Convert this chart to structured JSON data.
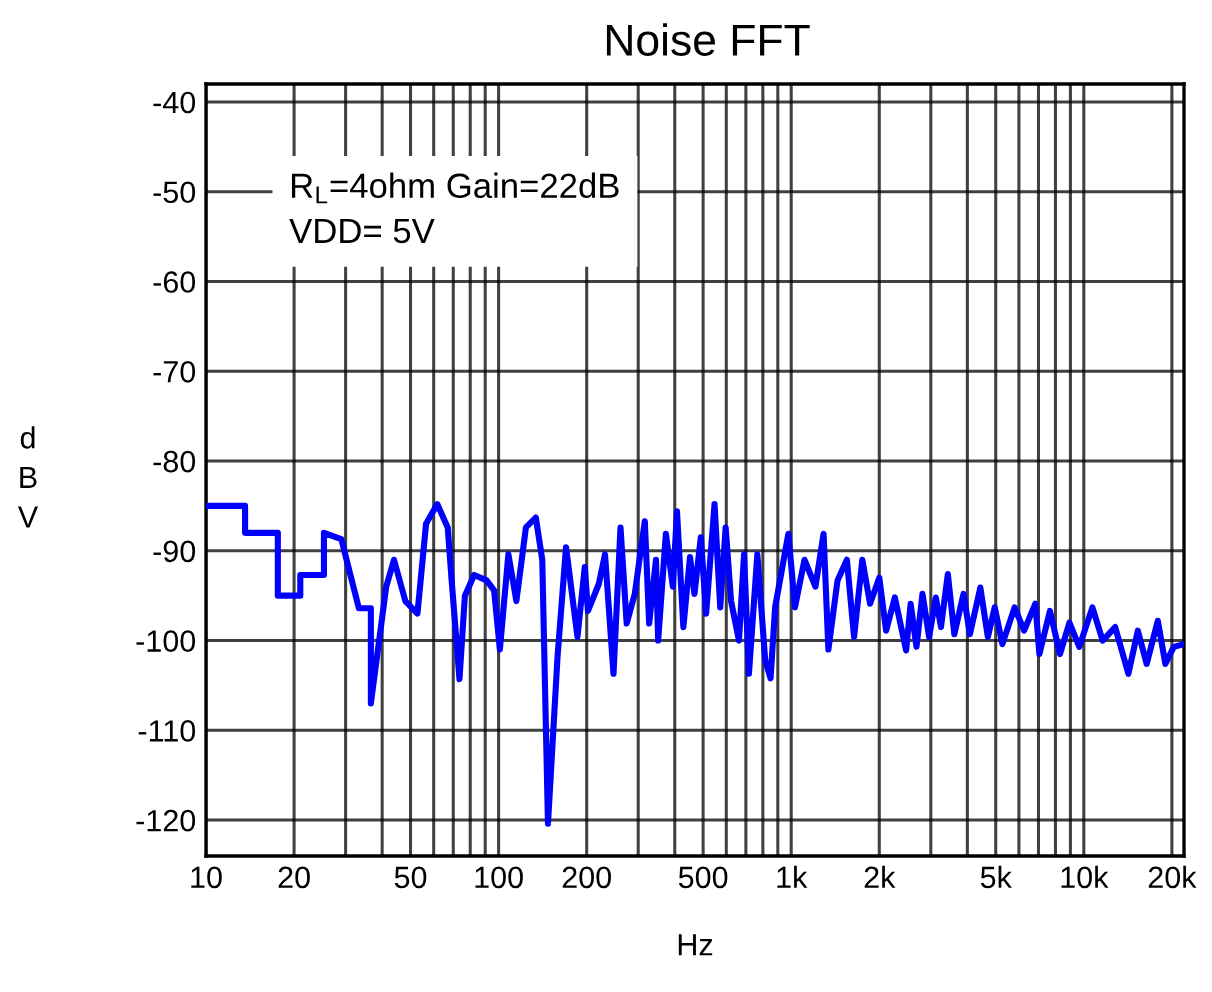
{
  "chart_data": {
    "type": "line",
    "title": "Noise FFT",
    "xlabel": "Hz",
    "ylabel": "dBV",
    "log": "x",
    "grid": true,
    "legend": false,
    "annotations": [
      "R$_{L}$=4ohm Gain=22dB",
      "VDD= 5V"
    ],
    "xlim": [
      10,
      22000
    ],
    "ylim": [
      -124,
      -38
    ],
    "xticks": [
      10,
      20,
      {
        "value": 30,
        "label": null
      },
      {
        "value": 40,
        "label": null
      },
      50,
      {
        "value": 60,
        "label": null
      },
      {
        "value": 70,
        "label": null
      },
      {
        "value": 80,
        "label": null
      },
      {
        "value": 90,
        "label": null
      },
      100,
      200,
      {
        "value": 300,
        "label": null
      },
      {
        "value": 400,
        "label": null
      },
      500,
      {
        "value": 600,
        "label": null
      },
      {
        "value": 700,
        "label": null
      },
      {
        "value": 800,
        "label": null
      },
      {
        "value": 900,
        "label": null
      },
      {
        "value": 1000,
        "label": "1k"
      },
      {
        "value": 2000,
        "label": "2k"
      },
      {
        "value": 3000,
        "label": null
      },
      {
        "value": 4000,
        "label": null
      },
      {
        "value": 5000,
        "label": "5k"
      },
      {
        "value": 6000,
        "label": null
      },
      {
        "value": 7000,
        "label": null
      },
      {
        "value": 8000,
        "label": null
      },
      {
        "value": 9000,
        "label": null
      },
      {
        "value": 10000,
        "label": "10k"
      },
      {
        "value": 20000,
        "label": "20k"
      }
    ],
    "yticks": [
      -40,
      -50,
      -60,
      -70,
      -80,
      -90,
      -100,
      -110,
      -120
    ],
    "series": [
      {
        "color": "#0000ff",
        "line_style": "solid",
        "marker": "none",
        "x": [
          10,
          13.6,
          13.6,
          17.6,
          17.6,
          21,
          21,
          25.3,
          25.3,
          29,
          33.3,
          36.6,
          36.6,
          41.3,
          43.9,
          48,
          52.8,
          56.5,
          61.7,
          67,
          69,
          73.5,
          76.7,
          82.5,
          91,
          96.5,
          101,
          108,
          115,
          124,
          134,
          141,
          147.5,
          159,
          170,
          186,
          197,
          202,
          220,
          231,
          247,
          261,
          274,
          292,
          316,
          327,
          345,
          351,
          373,
          394,
          407,
          428,
          451,
          467,
          491,
          512,
          547,
          572,
          597,
          623,
          663,
          690,
          717,
          766,
          815,
          850,
          881,
          978,
          1030,
          1110,
          1210,
          1290,
          1340,
          1440,
          1550,
          1640,
          1750,
          1860,
          2000,
          2110,
          2260,
          2470,
          2560,
          2680,
          2810,
          2960,
          3120,
          3250,
          3430,
          3610,
          3880,
          4080,
          4430,
          4700,
          4960,
          5270,
          5800,
          6250,
          6830,
          7050,
          7660,
          8290,
          8930,
          9650,
          10700,
          11600,
          12800,
          14200,
          15300,
          16400,
          17900,
          19000,
          20300,
          22000
        ],
        "values": [
          -85,
          -85,
          -88,
          -88,
          -95,
          -95,
          -92.7,
          -92.7,
          -88,
          -88.7,
          -96.4,
          -96.4,
          -107,
          -94,
          -91,
          -95.6,
          -97,
          -87,
          -84.8,
          -87.4,
          -93,
          -104.3,
          -95,
          -92.7,
          -93.3,
          -94.4,
          -101,
          -90.4,
          -95.6,
          -87.4,
          -86.3,
          -91,
          -120.4,
          -101.8,
          -89.6,
          -99.6,
          -91.8,
          -96.7,
          -93.7,
          -90.4,
          -103.7,
          -87.4,
          -98.1,
          -94.8,
          -86.7,
          -98.1,
          -91,
          -100,
          -88.1,
          -94,
          -85.6,
          -98.5,
          -90.7,
          -94.8,
          -88.5,
          -97,
          -84.8,
          -96.3,
          -87.4,
          -95.6,
          -100,
          -90.4,
          -103.7,
          -90.4,
          -102.2,
          -104.2,
          -96.3,
          -88.1,
          -96.3,
          -91,
          -94,
          -88.1,
          -101,
          -93.3,
          -91,
          -99.6,
          -91,
          -95.9,
          -93,
          -98.9,
          -95.2,
          -101.1,
          -95.9,
          -100.7,
          -94.8,
          -99.6,
          -95.2,
          -98.5,
          -92.6,
          -99.3,
          -94.8,
          -99.3,
          -94.1,
          -99.6,
          -96.3,
          -100.4,
          -96.3,
          -98.9,
          -95.9,
          -101.5,
          -96.7,
          -101.5,
          -98,
          -100.7,
          -96.3,
          -100,
          -98.5,
          -103.7,
          -98.9,
          -102.6,
          -97.8,
          -102.6,
          -100.7,
          -100.4
        ]
      }
    ]
  }
}
